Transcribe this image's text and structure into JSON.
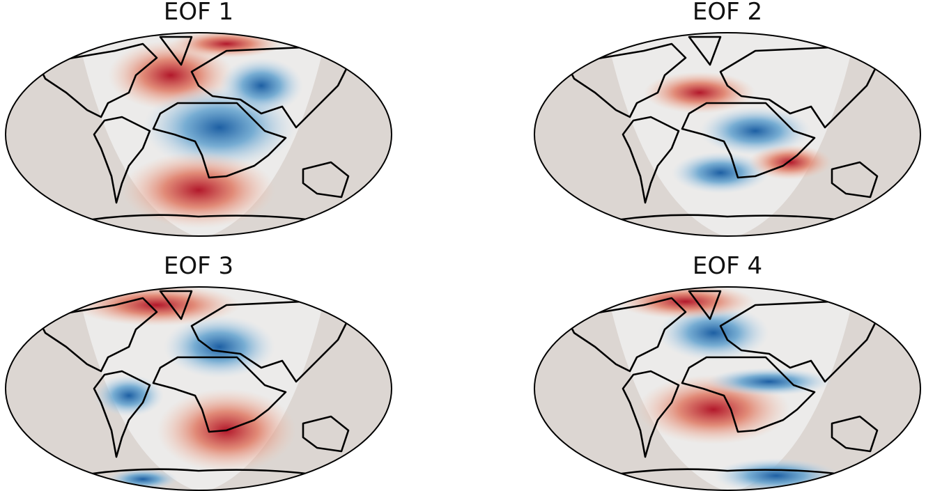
{
  "panels": [
    {
      "title": "EOF 1"
    },
    {
      "title": "EOF 2"
    },
    {
      "title": "EOF 3"
    },
    {
      "title": "EOF 4"
    }
  ]
}
